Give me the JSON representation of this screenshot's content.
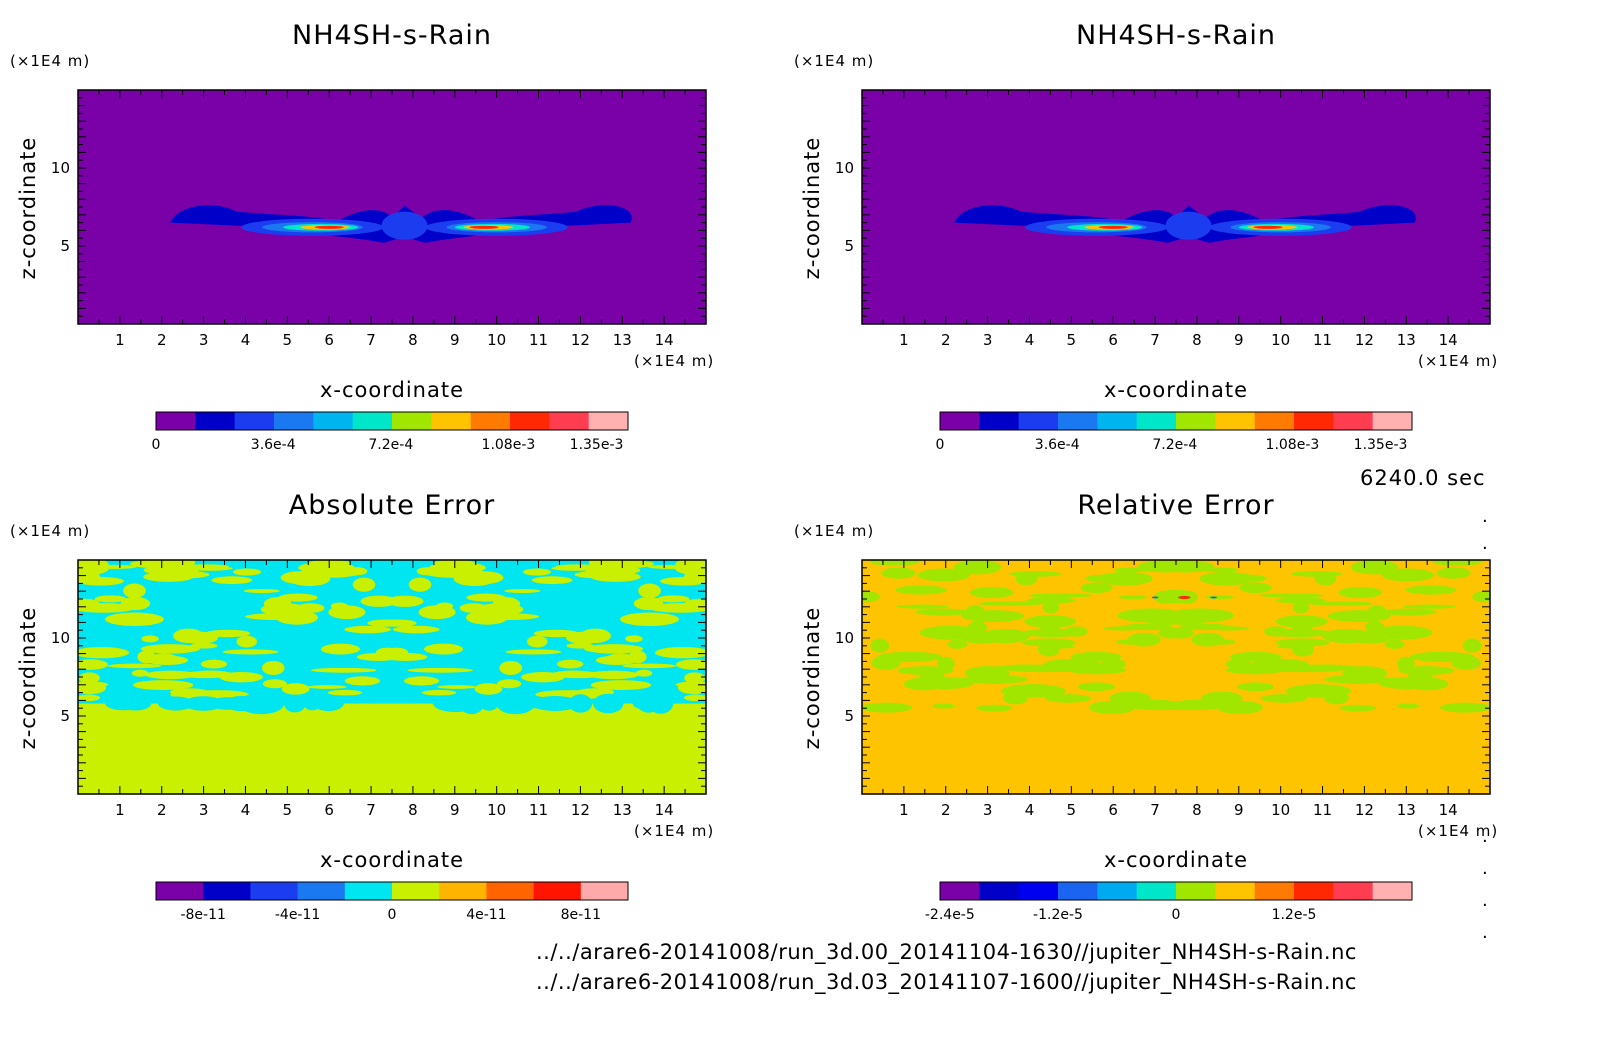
{
  "panels": [
    {
      "title": "NH4SH-s-Rain",
      "ylabel": "z-coordinate",
      "xlabel": "x-coordinate",
      "y_unit": "(×1E4 m)",
      "x_unit": "(×1E4 m)",
      "xticks": [
        "1",
        "2",
        "3",
        "4",
        "5",
        "6",
        "7",
        "8",
        "9",
        "10",
        "11",
        "12",
        "13",
        "14"
      ],
      "yticks": [
        "5",
        "10"
      ],
      "colorbar": {
        "colors": [
          "#7a00a8",
          "#0000c8",
          "#1c3cf0",
          "#1a78f0",
          "#00b4f0",
          "#00e6c8",
          "#a0e600",
          "#ffc400",
          "#ff7a00",
          "#ff2800",
          "#ff3c50",
          "#ffb0b0"
        ],
        "ticks": [
          "0",
          "3.6e-4",
          "7.2e-4",
          "1.08e-3",
          "1.35e-3"
        ]
      }
    },
    {
      "title": "NH4SH-s-Rain",
      "ylabel": "z-coordinate",
      "xlabel": "x-coordinate",
      "y_unit": "(×1E4 m)",
      "x_unit": "(×1E4 m)",
      "xticks": [
        "1",
        "2",
        "3",
        "4",
        "5",
        "6",
        "7",
        "8",
        "9",
        "10",
        "11",
        "12",
        "13",
        "14"
      ],
      "yticks": [
        "5",
        "10"
      ],
      "colorbar": {
        "colors": [
          "#7a00a8",
          "#0000c8",
          "#1c3cf0",
          "#1a78f0",
          "#00b4f0",
          "#00e6c8",
          "#a0e600",
          "#ffc400",
          "#ff7a00",
          "#ff2800",
          "#ff3c50",
          "#ffb0b0"
        ],
        "ticks": [
          "0",
          "3.6e-4",
          "7.2e-4",
          "1.08e-3",
          "1.35e-3"
        ]
      }
    },
    {
      "title": "Absolute Error",
      "ylabel": "z-coordinate",
      "xlabel": "x-coordinate",
      "y_unit": "(×1E4 m)",
      "x_unit": "(×1E4 m)",
      "xticks": [
        "1",
        "2",
        "3",
        "4",
        "5",
        "6",
        "7",
        "8",
        "9",
        "10",
        "11",
        "12",
        "13",
        "14"
      ],
      "yticks": [
        "5",
        "10"
      ],
      "colorbar": {
        "colors": [
          "#7a00a8",
          "#0000c8",
          "#1c3cf0",
          "#1a78f0",
          "#00e6f0",
          "#c8f000",
          "#ffb400",
          "#ff6400",
          "#ff1400",
          "#ffaaaa"
        ],
        "ticks": [
          "-8e-11",
          "-4e-11",
          "0",
          "4e-11",
          "8e-11"
        ]
      }
    },
    {
      "title": "Relative Error",
      "ylabel": "z-coordinate",
      "xlabel": "x-coordinate",
      "y_unit": "(×1E4 m)",
      "x_unit": "(×1E4 m)",
      "xticks": [
        "1",
        "2",
        "3",
        "4",
        "5",
        "6",
        "7",
        "8",
        "9",
        "10",
        "11",
        "12",
        "13",
        "14"
      ],
      "yticks": [
        "5",
        "10"
      ],
      "colorbar": {
        "colors": [
          "#7a00a8",
          "#0000c8",
          "#0000f0",
          "#1a64f0",
          "#00aaf0",
          "#00e6c8",
          "#a0e600",
          "#ffc400",
          "#ff7a00",
          "#ff2800",
          "#ff3c50",
          "#ffb0b0"
        ],
        "ticks": [
          "-2.4e-5",
          "-1.2e-5",
          "0",
          "1.2e-5"
        ]
      }
    }
  ],
  "time_label": "6240.0 sec",
  "footer": {
    "line1": "../../arare6-20141008/run_3d.00_20141104-1630//jupiter_NH4SH-s-Rain.nc",
    "line2": "../../arare6-20141008/run_3d.03_20141107-1600//jupiter_NH4SH-s-Rain.nc"
  },
  "chart_data": [
    {
      "type": "heatmap",
      "title": "NH4SH-s-Rain",
      "xlabel": "x-coordinate",
      "ylabel": "z-coordinate",
      "xlim": [
        0,
        15
      ],
      "ylim": [
        0,
        15
      ],
      "x_unit": "(×1E4 m)",
      "y_unit": "(×1E4 m)",
      "colorbar_ticks": [
        0,
        0.00036,
        0.00072,
        0.00108,
        0.00135
      ],
      "background_value": 0,
      "features": [
        {
          "region": "blobs near x=3 and x=12.5, z≈7",
          "level": "low (~1e-4)"
        },
        {
          "region": "bands x=4–7 and x=9–12, z≈6",
          "level": "peak (~1.3e-3) at x≈6, z≈6.2 and x≈9.8, z≈6.2"
        },
        {
          "region": "center x≈7.5–8.5, z≈5–7",
          "level": "low (~1e-4)"
        }
      ]
    },
    {
      "type": "heatmap",
      "title": "NH4SH-s-Rain",
      "xlabel": "x-coordinate",
      "ylabel": "z-coordinate",
      "xlim": [
        0,
        15
      ],
      "ylim": [
        0,
        15
      ],
      "x_unit": "(×1E4 m)",
      "y_unit": "(×1E4 m)",
      "colorbar_ticks": [
        0,
        0.00036,
        0.00072,
        0.00108,
        0.00135
      ],
      "background_value": 0
    },
    {
      "type": "heatmap",
      "title": "Absolute Error",
      "xlabel": "x-coordinate",
      "ylabel": "z-coordinate",
      "xlim": [
        0,
        15
      ],
      "ylim": [
        0,
        15
      ],
      "x_unit": "(×1E4 m)",
      "y_unit": "(×1E4 m)",
      "colorbar_ticks": [
        -8e-11,
        -4e-11,
        0,
        4e-11,
        8e-11
      ],
      "background_value": 0,
      "features": [
        {
          "region": "z > 5.5 mottled",
          "level": "between -2e-11 and 0"
        }
      ]
    },
    {
      "type": "heatmap",
      "title": "Relative Error",
      "xlabel": "x-coordinate",
      "ylabel": "z-coordinate",
      "xlim": [
        0,
        15
      ],
      "ylim": [
        0,
        15
      ],
      "x_unit": "(×1E4 m)",
      "y_unit": "(×1E4 m)",
      "colorbar_ticks": [
        -2.4e-05,
        -1.2e-05,
        0,
        1.2e-05
      ],
      "background_value": 0,
      "features": [
        {
          "region": "z > 5.5 mottled",
          "level": "slightly negative"
        },
        {
          "region": "x≈7.7, z≈12.5",
          "level": "spot ~1.2e-5"
        }
      ]
    }
  ]
}
